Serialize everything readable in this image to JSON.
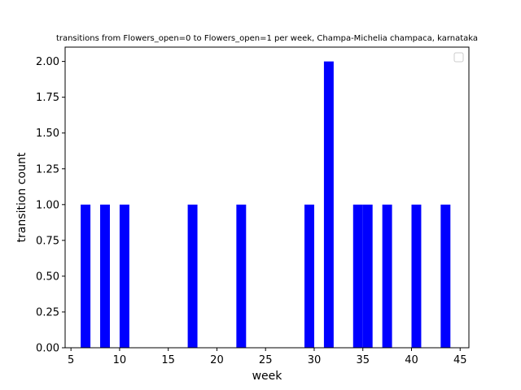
{
  "chart_data": {
    "type": "bar",
    "title": "transitions from Flowers_open=0 to Flowers_open=1 per week, Champa-Michelia champaca, karnataka",
    "xlabel": "week",
    "ylabel": "transition count",
    "xlim": [
      4.4,
      45.9
    ],
    "ylim": [
      0,
      2.1
    ],
    "bar_width": 1.0,
    "bar_color": "#0000ff",
    "x_ticks": [
      5,
      10,
      15,
      20,
      25,
      30,
      35,
      40,
      45
    ],
    "x_tick_labels": [
      "5",
      "10",
      "15",
      "20",
      "25",
      "30",
      "35",
      "40",
      "45"
    ],
    "y_ticks": [
      0,
      0.25,
      0.5,
      0.75,
      1.0,
      1.25,
      1.5,
      1.75,
      2.0
    ],
    "y_tick_labels": [
      "0.00",
      "0.25",
      "0.50",
      "0.75",
      "1.00",
      "1.25",
      "1.50",
      "1.75",
      "2.00"
    ],
    "x": [
      6.5,
      8.5,
      10.5,
      17.5,
      22.5,
      29.5,
      31.5,
      34.5,
      35.5,
      37.5,
      40.5,
      43.5
    ],
    "values": [
      1,
      1,
      1,
      1,
      1,
      1,
      2,
      1,
      1,
      1,
      1,
      1
    ],
    "legend": "top-right, empty",
    "grid": false
  }
}
